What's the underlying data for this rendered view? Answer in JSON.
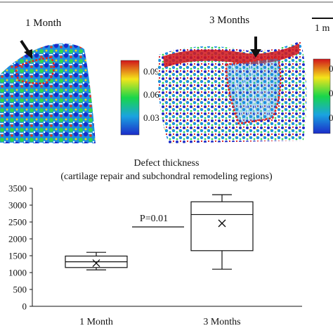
{
  "panels": {
    "left_label": "1 Month",
    "right_label": "3 Months",
    "scale_bar_label": "1 m"
  },
  "colorbar_left": {
    "ticks": [
      "0.09",
      "0.06",
      "0.03"
    ]
  },
  "colorbar_right": {
    "ticks": [
      "0",
      "0",
      "0"
    ]
  },
  "colors": {
    "low": "#1b2cc9",
    "mid": "#19d64a",
    "high": "#d1141b",
    "defect_outline": "#e2261f"
  },
  "chart_data": {
    "type": "box",
    "title": "Defect thickness",
    "subtitle": "(cartilage repair and subchondral remodeling regions)",
    "categories": [
      "1 Month",
      "3 Months"
    ],
    "ylim": [
      0,
      3500
    ],
    "yticks": [
      0,
      500,
      1000,
      1500,
      2000,
      2500,
      3000,
      3500
    ],
    "grid": false,
    "series": [
      {
        "boxes": [
          {
            "min": 1080,
            "q1": 1150,
            "median": 1320,
            "q3": 1490,
            "max": 1600,
            "mean": 1280
          },
          {
            "min": 1100,
            "q1": 1650,
            "median": 2720,
            "q3": 3100,
            "max": 3310,
            "mean": 2460
          }
        ]
      }
    ],
    "annotation": {
      "text": "P=0.01"
    }
  }
}
